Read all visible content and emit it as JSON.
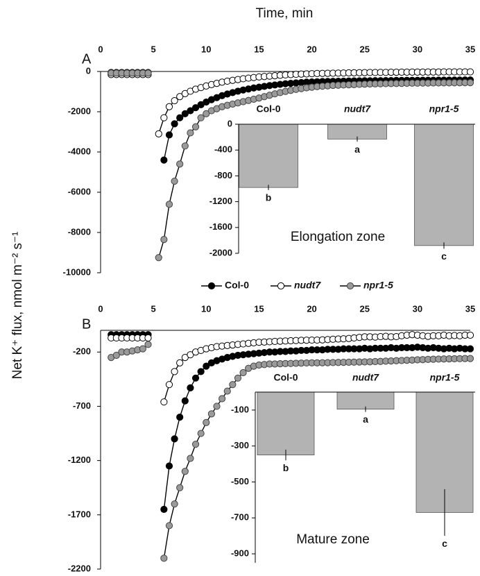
{
  "chart_data": [
    {
      "type": "line",
      "panel": "A",
      "xlabel": "Time, min",
      "ylabel": "Net K⁺ flux, nmol m⁻² s⁻¹",
      "xlim": [
        0,
        35
      ],
      "xticks": [
        0,
        5,
        10,
        15,
        20,
        25,
        30,
        35
      ],
      "ylim": [
        -10000,
        0
      ],
      "yticks": [
        0,
        -2000,
        -4000,
        -6000,
        -8000,
        -10000
      ],
      "x": [
        1,
        1.5,
        2,
        2.5,
        3,
        3.5,
        4,
        4.5,
        5,
        5.5,
        6,
        6.5,
        7,
        7.5,
        8,
        8.5,
        9,
        9.5,
        10,
        10.5,
        11,
        11.5,
        12,
        12.5,
        13,
        13.5,
        14,
        14.5,
        15,
        15.5,
        16,
        16.5,
        17,
        17.5,
        18,
        18.5,
        19,
        19.5,
        20,
        20.5,
        21,
        21.5,
        22,
        22.5,
        23,
        23.5,
        24,
        24.5,
        25,
        25.5,
        26,
        26.5,
        27,
        27.5,
        28,
        28.5,
        29,
        29.5,
        30,
        30.5,
        31,
        31.5,
        32,
        32.5,
        33,
        33.5,
        34,
        34.5,
        35
      ],
      "series": [
        {
          "name": "Col-0",
          "color": "#000000",
          "values": [
            -50,
            -50,
            -50,
            -50,
            -50,
            -50,
            -50,
            -50,
            null,
            null,
            -4400,
            -3150,
            -2600,
            -2300,
            -2100,
            -1950,
            -1800,
            -1650,
            -1520,
            -1400,
            -1300,
            -1200,
            -1120,
            -1050,
            -980,
            -920,
            -870,
            -820,
            -780,
            -740,
            -700,
            -670,
            -640,
            -610,
            -590,
            -570,
            -550,
            -530,
            -520,
            -510,
            -500,
            -495,
            -490,
            -485,
            -480,
            -475,
            -470,
            -465,
            -460,
            -460,
            -455,
            -455,
            -450,
            -450,
            -445,
            -445,
            -440,
            -440,
            -440,
            -435,
            -435,
            -435,
            -430,
            -430,
            -430,
            -425,
            -425,
            -420,
            -420
          ]
        },
        {
          "name": "nudt7",
          "color": "#ffffff",
          "values": [
            -150,
            -150,
            -150,
            -150,
            -150,
            -150,
            -150,
            -150,
            null,
            -3100,
            -2300,
            -1750,
            -1450,
            -1250,
            -1100,
            -980,
            -880,
            -800,
            -720,
            -650,
            -590,
            -530,
            -480,
            -440,
            -400,
            -360,
            -330,
            -300,
            -270,
            -250,
            -230,
            -210,
            -190,
            -170,
            -155,
            -140,
            -130,
            -120,
            -110,
            -100,
            -95,
            -90,
            -85,
            -80,
            -75,
            -70,
            -65,
            -60,
            -55,
            -50,
            -50,
            -45,
            -45,
            -40,
            -40,
            -35,
            -35,
            -30,
            -30,
            -30,
            -25,
            -25,
            -25,
            -20,
            -20,
            -20,
            -20,
            -20,
            -20
          ]
        },
        {
          "name": "npr1-5",
          "color": "#9a9a9a",
          "values": [
            -80,
            -80,
            -80,
            -80,
            -80,
            -80,
            -80,
            -80,
            null,
            -9250,
            -8350,
            -6600,
            -5450,
            -4600,
            -3700,
            -3050,
            -2750,
            -2300,
            -2100,
            -1950,
            -1850,
            -1750,
            -1680,
            -1620,
            -1560,
            -1500,
            -1440,
            -1380,
            -1320,
            -1250,
            -1180,
            -1110,
            -1050,
            -990,
            -940,
            -890,
            -850,
            -810,
            -780,
            -750,
            -730,
            -710,
            -690,
            -680,
            -670,
            -660,
            -650,
            -640,
            -630,
            -620,
            -615,
            -610,
            -605,
            -600,
            -595,
            -590,
            -585,
            -580,
            -580,
            -575,
            -575,
            -570,
            -570,
            -565,
            -565,
            -560,
            -560,
            -555,
            -555
          ]
        }
      ]
    },
    {
      "type": "bar",
      "categories": [
        "Col-0",
        "nudt7",
        "npr1-5"
      ],
      "values": [
        -980,
        -230,
        -1880
      ],
      "errors": [
        40,
        40,
        50
      ],
      "group_labels": [
        "b",
        "a",
        "c"
      ],
      "caption": "Elongation zone",
      "color": "#b3b3b3",
      "ylim": [
        -2000,
        0
      ],
      "yticks": [
        0,
        -400,
        -800,
        -1200,
        -1600,
        -2000
      ]
    },
    {
      "type": "line",
      "panel": "B",
      "xlim": [
        0,
        35
      ],
      "xticks": [
        0,
        5,
        10,
        15,
        20,
        25,
        30,
        35
      ],
      "ylim": [
        -2200,
        0
      ],
      "yticks": [
        -200,
        -700,
        -1200,
        -1700,
        -2200
      ],
      "x": [
        1,
        1.5,
        2,
        2.5,
        3,
        3.5,
        4,
        4.5,
        5,
        5.5,
        6,
        6.5,
        7,
        7.5,
        8,
        8.5,
        9,
        9.5,
        10,
        10.5,
        11,
        11.5,
        12,
        12.5,
        13,
        13.5,
        14,
        14.5,
        15,
        15.5,
        16,
        16.5,
        17,
        17.5,
        18,
        18.5,
        19,
        19.5,
        20,
        20.5,
        21,
        21.5,
        22,
        22.5,
        23,
        23.5,
        24,
        24.5,
        25,
        25.5,
        26,
        26.5,
        27,
        27.5,
        28,
        28.5,
        29,
        29.5,
        30,
        30.5,
        31,
        31.5,
        32,
        32.5,
        33,
        33.5,
        34,
        34.5,
        35
      ],
      "series": [
        {
          "color": "#000000",
          "values": [
            -40,
            -40,
            -40,
            -40,
            -40,
            -40,
            -40,
            -40,
            null,
            null,
            -1650,
            -1250,
            -1000,
            -800,
            -650,
            -530,
            -440,
            -380,
            -330,
            -300,
            -280,
            -265,
            -250,
            -240,
            -230,
            -225,
            -220,
            -215,
            -210,
            -205,
            -200,
            -200,
            -195,
            -195,
            -190,
            -190,
            -185,
            -185,
            -180,
            -180,
            -180,
            -175,
            -175,
            -175,
            -170,
            -170,
            -170,
            -170,
            -165,
            -170,
            -165,
            -165,
            -165,
            -160,
            -165,
            -160,
            -160,
            -160,
            -155,
            -160,
            -165,
            -160,
            -165,
            -170,
            -165,
            -170,
            -165,
            -170,
            -170
          ]
        },
        {
          "color": "#ffffff",
          "values": [
            -70,
            -70,
            -70,
            -70,
            -70,
            -70,
            -70,
            -70,
            null,
            null,
            -660,
            -500,
            -380,
            -300,
            -250,
            -225,
            -200,
            -185,
            -170,
            -160,
            -150,
            -145,
            -140,
            -135,
            -130,
            -125,
            -120,
            -115,
            -110,
            -108,
            -105,
            -102,
            -100,
            -98,
            -96,
            -94,
            -92,
            -91,
            -90,
            -90,
            -88,
            -85,
            -82,
            -80,
            -78,
            -75,
            -70,
            -65,
            -60,
            -60,
            -62,
            -58,
            -55,
            -60,
            -58,
            -50,
            -45,
            -40,
            -45,
            -50,
            -55,
            -50,
            -50,
            -45,
            -50,
            -48,
            -50,
            -45,
            -45
          ]
        },
        {
          "color": "#9a9a9a",
          "values": [
            -250,
            -230,
            -200,
            -200,
            -190,
            -180,
            -170,
            -130,
            null,
            null,
            -2100,
            -1800,
            -1600,
            -1450,
            -1300,
            -1180,
            -1050,
            -950,
            -850,
            -770,
            -700,
            -630,
            -560,
            -500,
            -440,
            -390,
            -350,
            -330,
            -320,
            -315,
            -310,
            -310,
            -308,
            -306,
            -305,
            -304,
            -302,
            -301,
            -300,
            -300,
            -299,
            -298,
            -297,
            -296,
            -295,
            -294,
            -293,
            -292,
            -291,
            -290,
            -288,
            -286,
            -284,
            -282,
            -280,
            -278,
            -276,
            -274,
            -272,
            -270,
            -268,
            -266,
            -265,
            -264,
            -263,
            -262,
            -261,
            -260,
            -260
          ]
        }
      ]
    },
    {
      "type": "bar",
      "categories": [
        "Col-0",
        "nudt7",
        "npr1-5"
      ],
      "values": [
        -350,
        -95,
        -670
      ],
      "errors": [
        30,
        15,
        130
      ],
      "group_labels": [
        "b",
        "a",
        "c"
      ],
      "caption": "Mature zone",
      "color": "#b3b3b3",
      "ylim": [
        -950,
        0
      ],
      "yticks": [
        -100,
        -300,
        -500,
        -700,
        -900
      ]
    }
  ]
}
